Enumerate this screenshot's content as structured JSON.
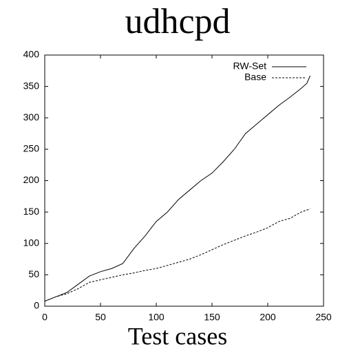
{
  "chart_data": {
    "type": "line",
    "title": "udhcpd",
    "x_label": "Test cases",
    "series": [
      {
        "name": "RW-Set",
        "color": "#000000",
        "dashed": false,
        "x": [
          0,
          10,
          20,
          30,
          40,
          50,
          60,
          70,
          80,
          90,
          100,
          110,
          120,
          130,
          140,
          150,
          160,
          170,
          180,
          190,
          200,
          210,
          220,
          230,
          235,
          238
        ],
        "values": [
          8,
          15,
          22,
          35,
          48,
          55,
          60,
          68,
          92,
          112,
          135,
          150,
          170,
          185,
          200,
          212,
          230,
          250,
          275,
          290,
          305,
          320,
          333,
          347,
          355,
          367
        ]
      },
      {
        "name": "Base",
        "color": "#000000",
        "dashed": true,
        "x": [
          0,
          10,
          20,
          30,
          40,
          50,
          60,
          70,
          80,
          90,
          100,
          110,
          120,
          130,
          140,
          150,
          160,
          170,
          180,
          190,
          200,
          210,
          220,
          230,
          238
        ],
        "values": [
          8,
          15,
          20,
          28,
          38,
          42,
          46,
          50,
          53,
          57,
          60,
          65,
          70,
          75,
          82,
          90,
          98,
          105,
          112,
          118,
          125,
          135,
          140,
          150,
          155
        ]
      }
    ],
    "xlim": [
      0,
      250
    ],
    "xticks": [
      0,
      50,
      100,
      150,
      200,
      250
    ],
    "ylim": [
      0,
      400
    ],
    "yticks": [
      0,
      50,
      100,
      150,
      200,
      250,
      300,
      350,
      400
    ],
    "grid": false,
    "legend": "upper right"
  }
}
